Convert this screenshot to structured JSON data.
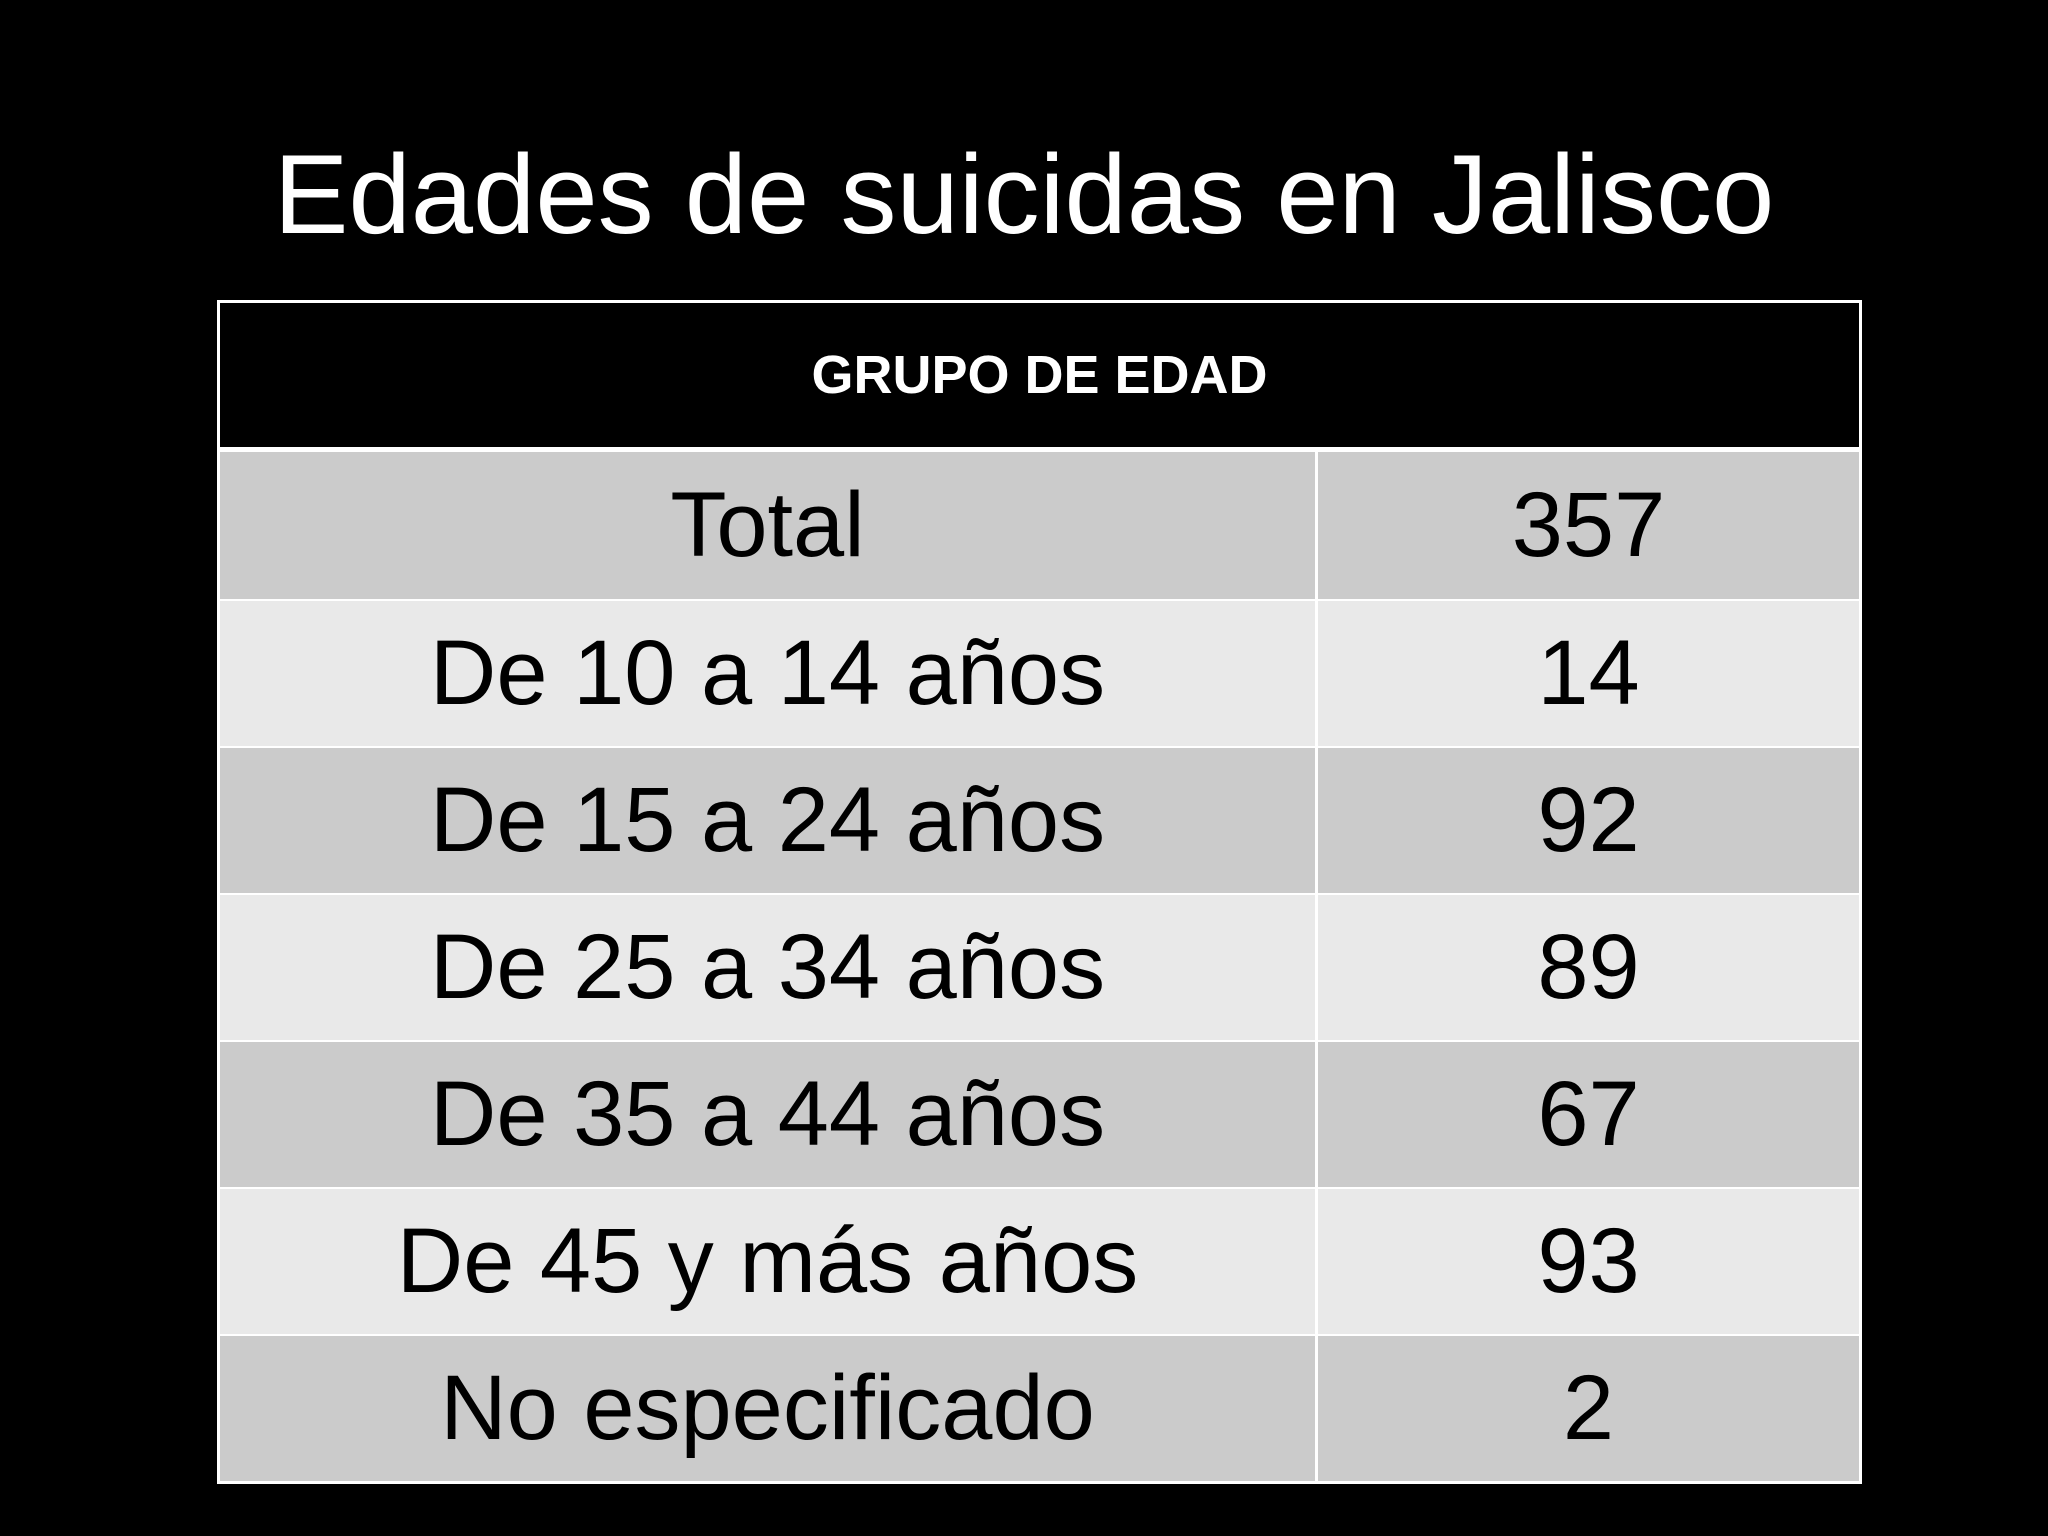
{
  "title": "Edades de suicidas en Jalisco",
  "table": {
    "header": "GRUPO DE EDAD",
    "rows": [
      [
        "Total",
        357
      ],
      [
        "De 10 a 14 años",
        14
      ],
      [
        "De 15 a 24 años",
        92
      ],
      [
        "De 25 a 34 años",
        89
      ],
      [
        "De 35 a 44 años",
        67
      ],
      [
        "De 45 y más años",
        93
      ],
      [
        "No especificado",
        2
      ]
    ]
  }
}
